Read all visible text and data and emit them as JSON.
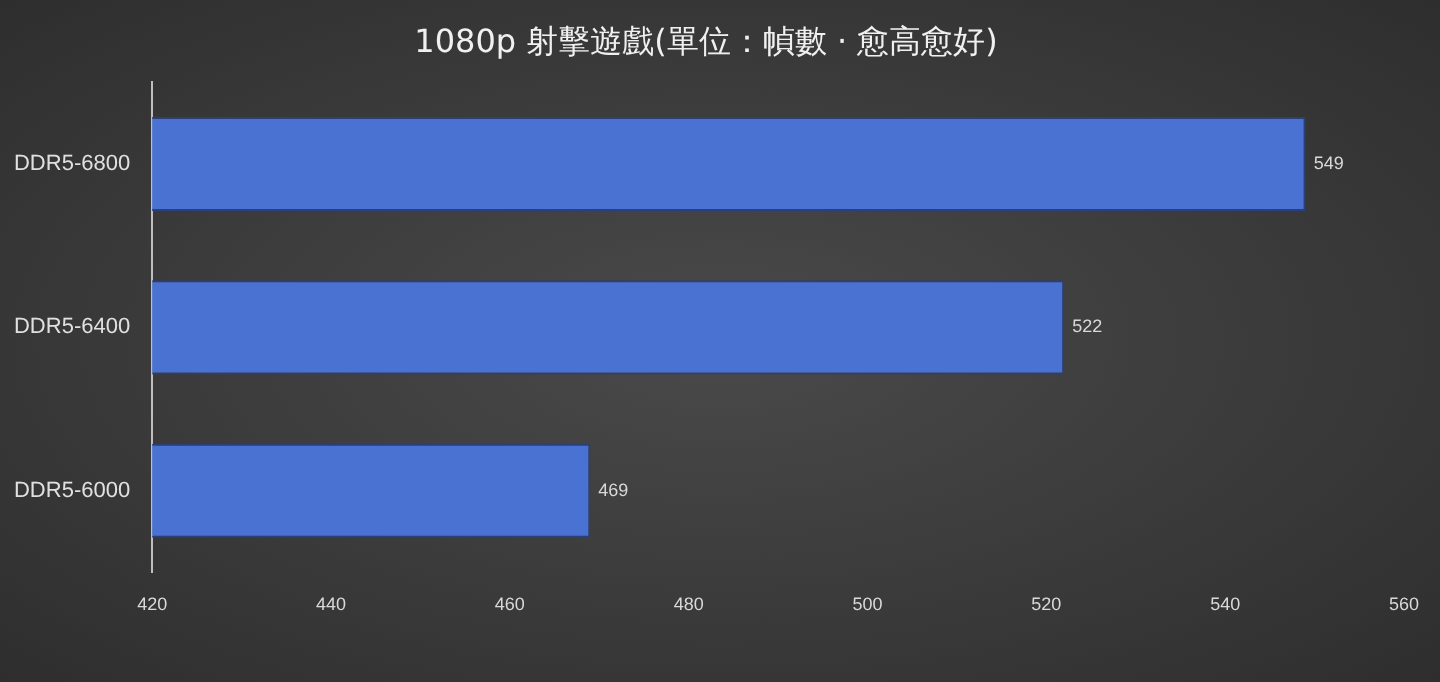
{
  "chart_data": {
    "type": "bar",
    "title": "1080p 射擊遊戲(單位：幀數 · 愈高愈好)",
    "orientation": "horizontal",
    "categories": [
      "DDR5-6800",
      "DDR5-6400",
      "DDR5-6000"
    ],
    "series": [
      {
        "color": "#4a72d2",
        "values": [
          549,
          522,
          469
        ]
      }
    ],
    "xlim": [
      420,
      560
    ],
    "xticks": [
      420,
      440,
      460,
      480,
      500,
      520,
      540,
      560
    ],
    "data_labels": true,
    "grid": false,
    "legend": false
  }
}
